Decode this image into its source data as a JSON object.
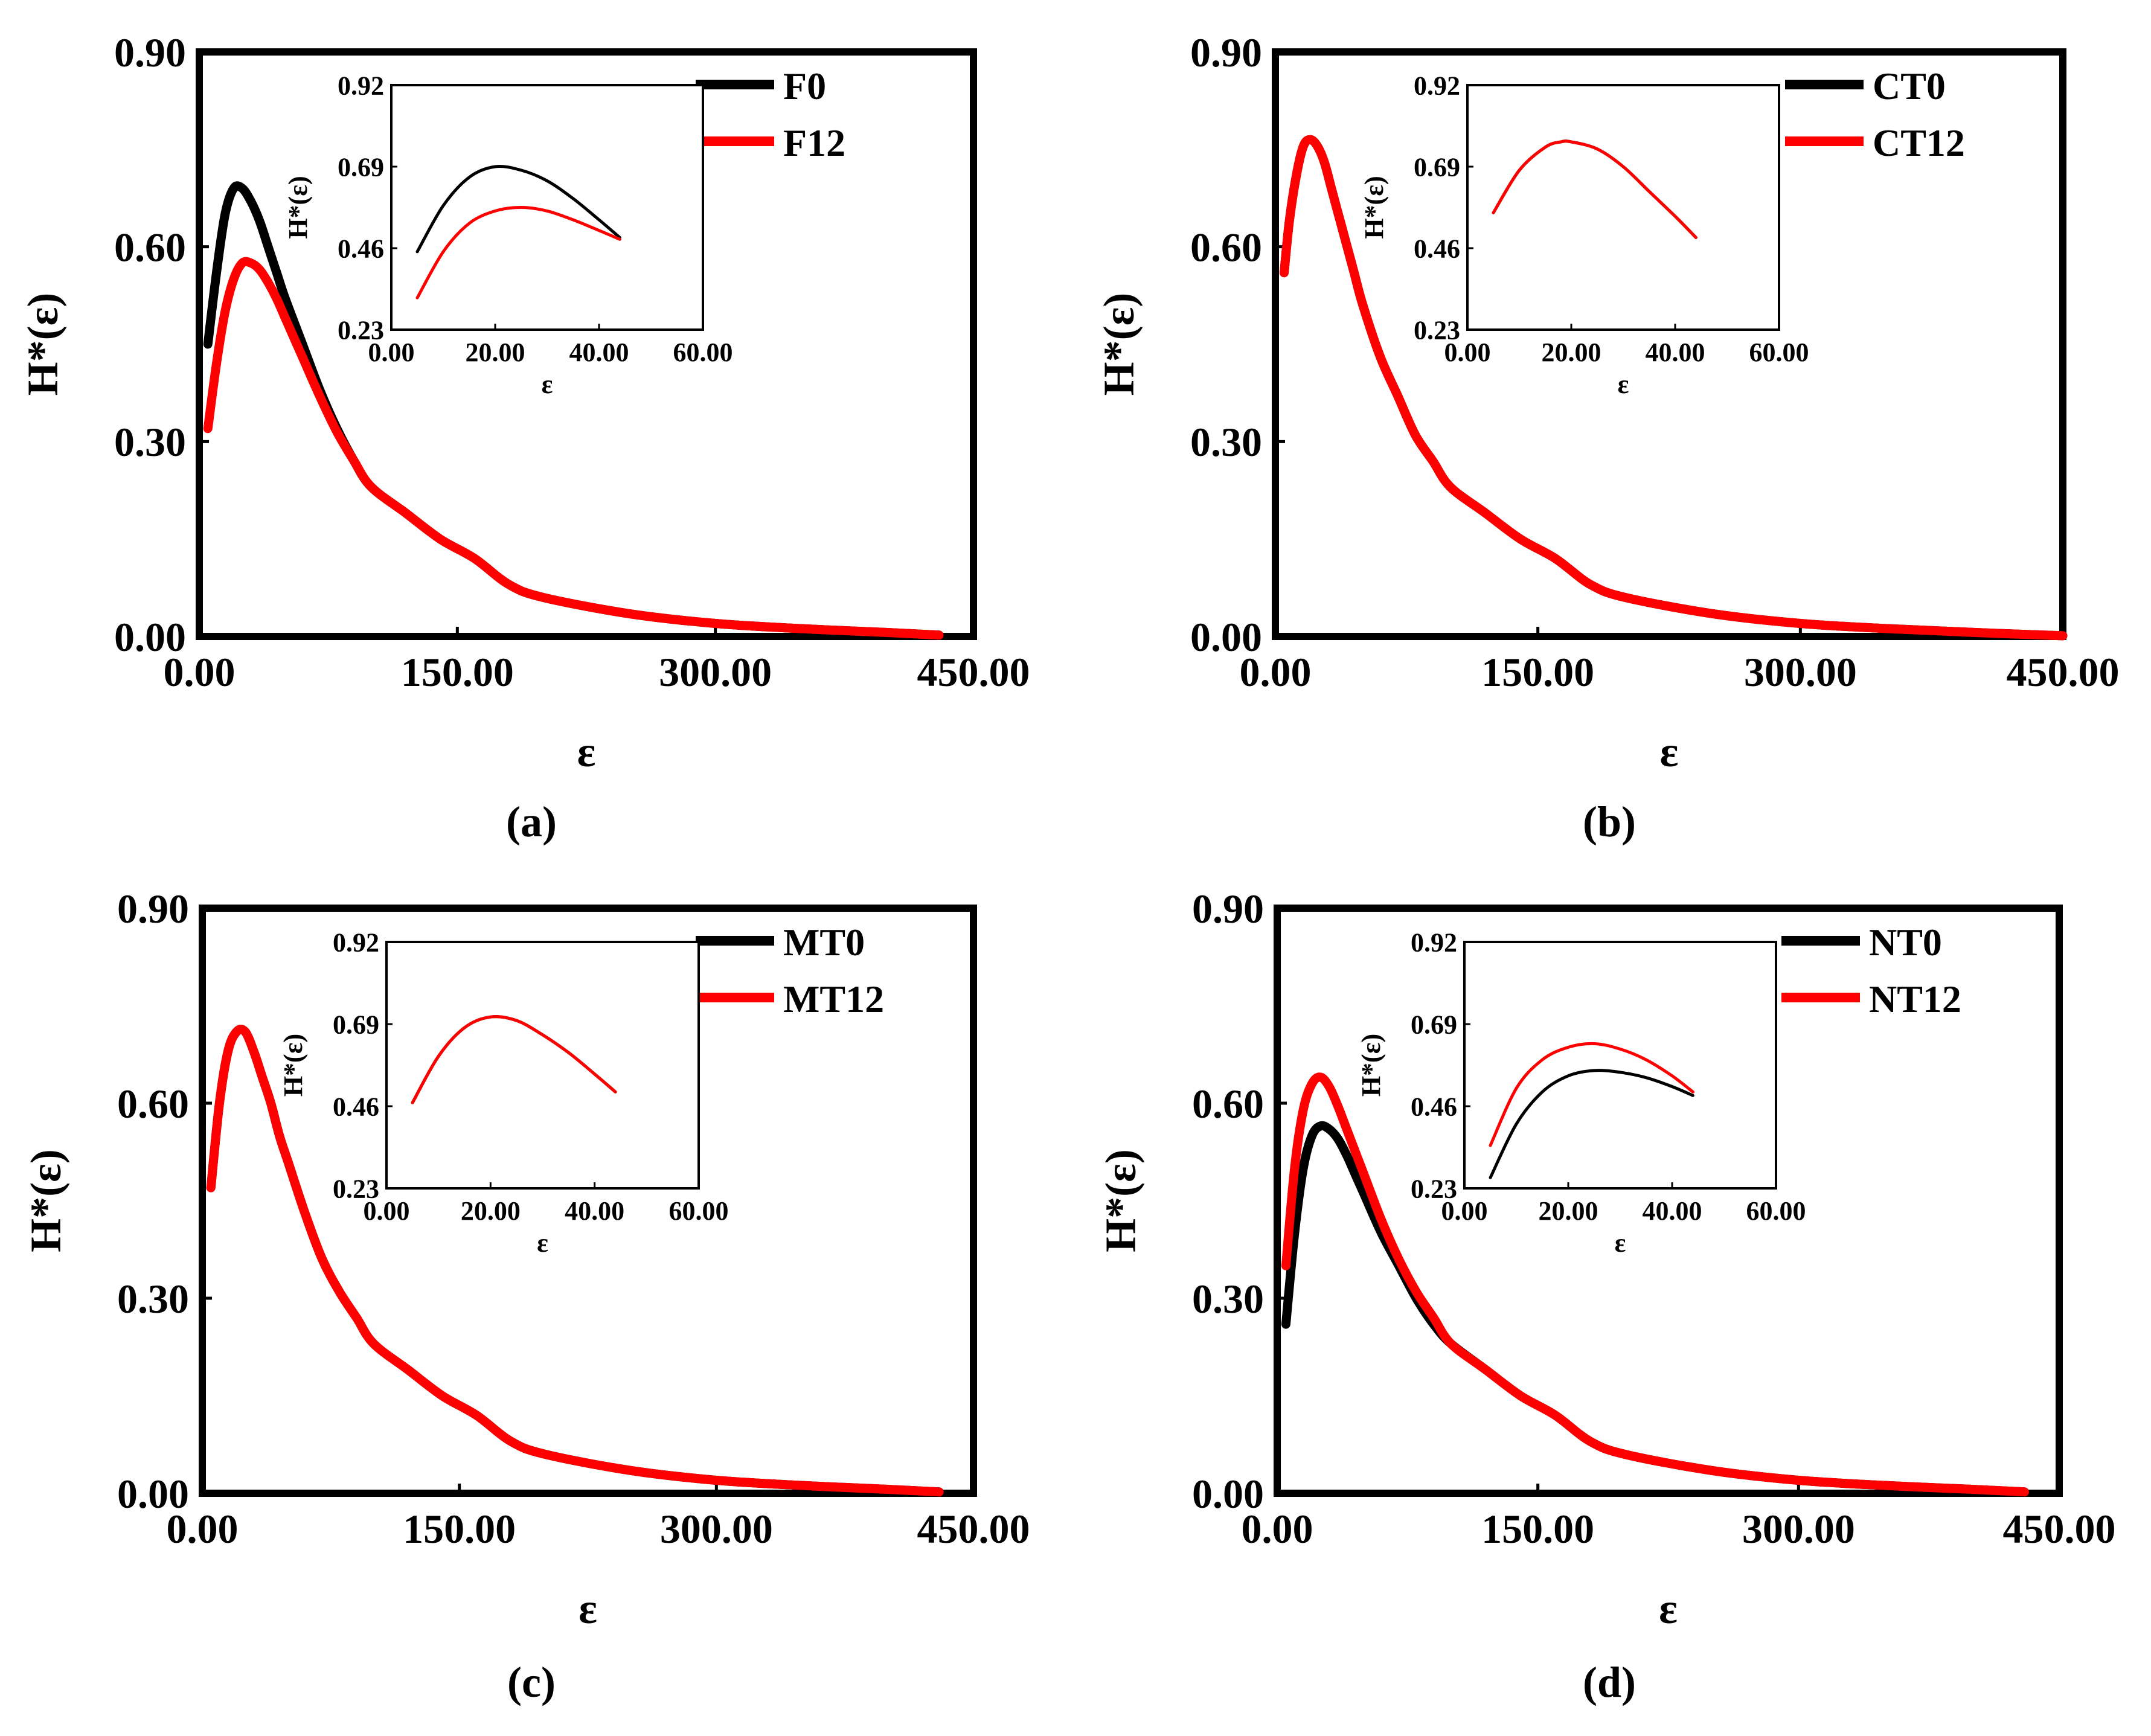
{
  "chart_data": [
    {
      "panel": "(a)",
      "type": "line",
      "xlabel": "ε",
      "ylabel": "H*(ε)",
      "xlim": [
        0,
        450
      ],
      "ylim": [
        0,
        0.9
      ],
      "xticks": [
        "0.00",
        "150.00",
        "300.00",
        "450.00"
      ],
      "yticks": [
        "0.00",
        "0.30",
        "0.60",
        "0.90"
      ],
      "legend_position": "top-right",
      "series": [
        {
          "name": "F0",
          "color": "#000000",
          "x": [
            5,
            10,
            15,
            20,
            25,
            30,
            35,
            40,
            45,
            50,
            60,
            70,
            80,
            90,
            100,
            120,
            140,
            160,
            180,
            200,
            250,
            300,
            350,
            400,
            430
          ],
          "y": [
            0.45,
            0.56,
            0.65,
            0.69,
            0.69,
            0.67,
            0.64,
            0.6,
            0.56,
            0.52,
            0.45,
            0.38,
            0.32,
            0.27,
            0.23,
            0.19,
            0.15,
            0.12,
            0.08,
            0.06,
            0.035,
            0.02,
            0.012,
            0.006,
            0.002
          ]
        },
        {
          "name": "F12",
          "color": "#ff0000",
          "x": [
            5,
            10,
            15,
            20,
            25,
            30,
            35,
            40,
            45,
            50,
            60,
            70,
            80,
            90,
            100,
            120,
            140,
            160,
            180,
            200,
            250,
            300,
            350,
            400,
            430
          ],
          "y": [
            0.32,
            0.42,
            0.5,
            0.55,
            0.575,
            0.575,
            0.565,
            0.545,
            0.52,
            0.49,
            0.43,
            0.37,
            0.315,
            0.27,
            0.23,
            0.19,
            0.15,
            0.12,
            0.08,
            0.06,
            0.035,
            0.02,
            0.012,
            0.006,
            0.002
          ]
        }
      ],
      "inset": {
        "xlabel": "ε",
        "ylabel": "H*(ε)",
        "xlim": [
          0,
          60
        ],
        "ylim": [
          0.23,
          0.92
        ],
        "xticks": [
          "0.00",
          "20.00",
          "40.00",
          "60.00"
        ],
        "yticks": [
          "0.23",
          "0.46",
          "0.69",
          "0.92"
        ],
        "series": [
          {
            "name": "F0",
            "color": "#000000",
            "x": [
              5,
              10,
              15,
              20,
              25,
              30,
              35,
              40,
              44
            ],
            "y": [
              0.45,
              0.58,
              0.66,
              0.69,
              0.68,
              0.65,
              0.6,
              0.54,
              0.49
            ]
          },
          {
            "name": "F12",
            "color": "#ff0000",
            "x": [
              5,
              10,
              15,
              20,
              25,
              30,
              35,
              40,
              44
            ],
            "y": [
              0.32,
              0.45,
              0.53,
              0.565,
              0.575,
              0.565,
              0.54,
              0.51,
              0.485
            ]
          }
        ]
      }
    },
    {
      "panel": "(b)",
      "type": "line",
      "xlabel": "ε",
      "ylabel": "H*(ε)",
      "xlim": [
        0,
        450
      ],
      "ylim": [
        0,
        0.9
      ],
      "xticks": [
        "0.00",
        "150.00",
        "300.00",
        "450.00"
      ],
      "yticks": [
        "0.00",
        "0.30",
        "0.60",
        "0.90"
      ],
      "legend_position": "top-right",
      "series": [
        {
          "name": "CT0",
          "color": "#000000",
          "x": [
            5,
            8,
            12,
            16,
            20,
            24,
            28,
            32,
            36,
            40,
            45,
            50,
            60,
            70,
            80,
            90,
            100,
            120,
            140,
            160,
            180,
            200,
            250,
            300,
            350,
            400,
            450
          ],
          "y": [
            0.56,
            0.64,
            0.71,
            0.755,
            0.765,
            0.755,
            0.73,
            0.69,
            0.65,
            0.61,
            0.56,
            0.51,
            0.43,
            0.37,
            0.31,
            0.27,
            0.23,
            0.19,
            0.15,
            0.12,
            0.08,
            0.06,
            0.035,
            0.02,
            0.012,
            0.006,
            0.001
          ]
        },
        {
          "name": "CT12",
          "color": "#ff0000",
          "x": [
            5,
            8,
            12,
            16,
            20,
            24,
            28,
            32,
            36,
            40,
            45,
            50,
            60,
            70,
            80,
            90,
            100,
            120,
            140,
            160,
            180,
            200,
            250,
            300,
            350,
            400,
            450
          ],
          "y": [
            0.56,
            0.64,
            0.71,
            0.755,
            0.765,
            0.755,
            0.73,
            0.69,
            0.65,
            0.61,
            0.56,
            0.51,
            0.43,
            0.37,
            0.31,
            0.27,
            0.23,
            0.19,
            0.15,
            0.12,
            0.08,
            0.06,
            0.035,
            0.02,
            0.012,
            0.006,
            0.001
          ]
        }
      ],
      "inset": {
        "xlabel": "ε",
        "ylabel": "H*(ε)",
        "xlim": [
          0,
          60
        ],
        "ylim": [
          0.23,
          0.92
        ],
        "xticks": [
          "0.00",
          "20.00",
          "40.00",
          "60.00"
        ],
        "yticks": [
          "0.23",
          "0.46",
          "0.69",
          "0.92"
        ],
        "series": [
          {
            "name": "CT0",
            "color": "#000000",
            "x": [
              5,
              10,
              15,
              18,
              20,
              25,
              30,
              35,
              40,
              44
            ],
            "y": [
              0.56,
              0.68,
              0.745,
              0.76,
              0.76,
              0.74,
              0.69,
              0.62,
              0.55,
              0.49
            ]
          },
          {
            "name": "CT12",
            "color": "#ff0000",
            "x": [
              5,
              10,
              15,
              18,
              20,
              25,
              30,
              35,
              40,
              44
            ],
            "y": [
              0.56,
              0.68,
              0.745,
              0.76,
              0.76,
              0.74,
              0.69,
              0.62,
              0.55,
              0.49
            ]
          }
        ]
      }
    },
    {
      "panel": "(c)",
      "type": "line",
      "xlabel": "ε",
      "ylabel": "H*(ε)",
      "xlim": [
        0,
        450
      ],
      "ylim": [
        0,
        0.9
      ],
      "xticks": [
        "0.00",
        "150.00",
        "300.00",
        "450.00"
      ],
      "yticks": [
        "0.00",
        "0.30",
        "0.60",
        "0.90"
      ],
      "legend_position": "top-right",
      "series": [
        {
          "name": "MT0",
          "color": "#000000",
          "x": [
            5,
            10,
            15,
            20,
            25,
            30,
            35,
            40,
            45,
            50,
            60,
            70,
            80,
            90,
            100,
            120,
            140,
            160,
            180,
            200,
            250,
            300,
            350,
            400,
            430
          ],
          "y": [
            0.47,
            0.6,
            0.68,
            0.71,
            0.71,
            0.68,
            0.64,
            0.6,
            0.55,
            0.51,
            0.43,
            0.36,
            0.31,
            0.27,
            0.23,
            0.19,
            0.15,
            0.12,
            0.08,
            0.06,
            0.035,
            0.02,
            0.012,
            0.006,
            0.002
          ]
        },
        {
          "name": "MT12",
          "color": "#ff0000",
          "x": [
            5,
            10,
            15,
            20,
            25,
            30,
            35,
            40,
            45,
            50,
            60,
            70,
            80,
            90,
            100,
            120,
            140,
            160,
            180,
            200,
            250,
            300,
            350,
            400,
            430
          ],
          "y": [
            0.47,
            0.6,
            0.68,
            0.71,
            0.71,
            0.68,
            0.64,
            0.6,
            0.55,
            0.51,
            0.43,
            0.36,
            0.31,
            0.27,
            0.23,
            0.19,
            0.15,
            0.12,
            0.08,
            0.06,
            0.035,
            0.02,
            0.012,
            0.006,
            0.002
          ]
        }
      ],
      "inset": {
        "xlabel": "ε",
        "ylabel": "H*(ε)",
        "xlim": [
          0,
          60
        ],
        "ylim": [
          0.23,
          0.92
        ],
        "xticks": [
          "0.00",
          "20.00",
          "40.00",
          "60.00"
        ],
        "yticks": [
          "0.23",
          "0.46",
          "0.69",
          "0.92"
        ],
        "series": [
          {
            "name": "MT0",
            "color": "#000000",
            "x": [
              5,
              10,
              15,
              20,
              25,
              30,
              35,
              40,
              44
            ],
            "y": [
              0.47,
              0.6,
              0.68,
              0.71,
              0.7,
              0.66,
              0.61,
              0.55,
              0.5
            ]
          },
          {
            "name": "MT12",
            "color": "#ff0000",
            "x": [
              5,
              10,
              15,
              20,
              25,
              30,
              35,
              40,
              44
            ],
            "y": [
              0.47,
              0.6,
              0.68,
              0.71,
              0.7,
              0.66,
              0.61,
              0.55,
              0.5
            ]
          }
        ]
      }
    },
    {
      "panel": "(d)",
      "type": "line",
      "xlabel": "ε",
      "ylabel": "H*(ε)",
      "xlim": [
        0,
        450
      ],
      "ylim": [
        0,
        0.9
      ],
      "xticks": [
        "0.00",
        "150.00",
        "300.00",
        "450.00"
      ],
      "yticks": [
        "0.00",
        "0.30",
        "0.60",
        "0.90"
      ],
      "legend_position": "top-right",
      "series": [
        {
          "name": "NT0",
          "color": "#000000",
          "x": [
            5,
            10,
            15,
            20,
            25,
            30,
            35,
            40,
            45,
            50,
            60,
            70,
            80,
            90,
            100,
            120,
            140,
            160,
            180,
            200,
            250,
            300,
            350,
            400,
            430
          ],
          "y": [
            0.26,
            0.4,
            0.5,
            0.55,
            0.565,
            0.56,
            0.545,
            0.52,
            0.49,
            0.46,
            0.4,
            0.35,
            0.3,
            0.26,
            0.23,
            0.19,
            0.15,
            0.12,
            0.08,
            0.06,
            0.035,
            0.02,
            0.012,
            0.006,
            0.002
          ]
        },
        {
          "name": "NT12",
          "color": "#ff0000",
          "x": [
            5,
            10,
            15,
            20,
            25,
            30,
            35,
            40,
            45,
            50,
            60,
            70,
            80,
            90,
            100,
            120,
            140,
            160,
            180,
            200,
            250,
            300,
            350,
            400,
            430
          ],
          "y": [
            0.35,
            0.5,
            0.59,
            0.63,
            0.64,
            0.625,
            0.595,
            0.56,
            0.525,
            0.49,
            0.42,
            0.36,
            0.31,
            0.27,
            0.23,
            0.19,
            0.15,
            0.12,
            0.08,
            0.06,
            0.035,
            0.02,
            0.012,
            0.006,
            0.002
          ]
        }
      ],
      "inset": {
        "xlabel": "ε",
        "ylabel": "H*(ε)",
        "xlim": [
          0,
          60
        ],
        "ylim": [
          0.23,
          0.92
        ],
        "xticks": [
          "0.00",
          "20.00",
          "40.00",
          "60.00"
        ],
        "yticks": [
          "0.23",
          "0.46",
          "0.69",
          "0.92"
        ],
        "series": [
          {
            "name": "NT0",
            "color": "#000000",
            "x": [
              5,
              10,
              15,
              20,
              25,
              30,
              35,
              40,
              44
            ],
            "y": [
              0.26,
              0.41,
              0.5,
              0.545,
              0.56,
              0.555,
              0.54,
              0.515,
              0.49
            ]
          },
          {
            "name": "NT12",
            "color": "#ff0000",
            "x": [
              5,
              10,
              15,
              20,
              25,
              30,
              35,
              40,
              44
            ],
            "y": [
              0.35,
              0.51,
              0.59,
              0.625,
              0.635,
              0.62,
              0.59,
              0.545,
              0.5
            ]
          }
        ]
      }
    }
  ]
}
